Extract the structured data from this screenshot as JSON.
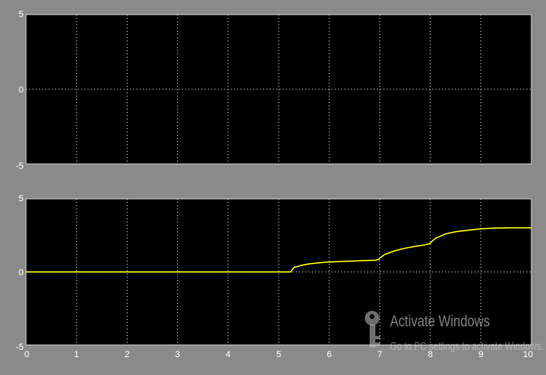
{
  "window": {
    "background": "#8a8a8a",
    "plot_background": "#000000",
    "grid_color": "#ffffff",
    "line_color": "#ffff00"
  },
  "chart_data": [
    {
      "type": "line",
      "title": "",
      "xlabel": "",
      "ylabel": "",
      "xlim": [
        0,
        10
      ],
      "ylim": [
        -5,
        5
      ],
      "y_ticks": [
        "5",
        "0",
        "-5"
      ],
      "x_ticks": [],
      "grid": true,
      "series": []
    },
    {
      "type": "line",
      "title": "",
      "xlabel": "",
      "ylabel": "",
      "xlim": [
        0,
        10
      ],
      "ylim": [
        -5,
        5
      ],
      "y_ticks": [
        "5",
        "0",
        "-5"
      ],
      "x_ticks": [
        "0",
        "1",
        "2",
        "3",
        "4",
        "5",
        "6",
        "7",
        "8",
        "9",
        "10"
      ],
      "grid": true,
      "series": [
        {
          "x": [
            0,
            5.24,
            5.26,
            5.3,
            5.45,
            5.6,
            5.8,
            6.0,
            6.3,
            6.6,
            6.9,
            6.98,
            7.0,
            7.1,
            7.3,
            7.5,
            7.7,
            7.9,
            8.0,
            8.02,
            8.1,
            8.3,
            8.5,
            8.8,
            9.0,
            9.3,
            9.6,
            10
          ],
          "y": [
            0,
            0,
            0.12,
            0.3,
            0.45,
            0.55,
            0.62,
            0.68,
            0.72,
            0.76,
            0.8,
            0.85,
            0.95,
            1.2,
            1.45,
            1.62,
            1.75,
            1.85,
            1.95,
            2.05,
            2.3,
            2.6,
            2.75,
            2.88,
            2.95,
            3.0,
            3.02,
            3.02
          ]
        }
      ]
    }
  ],
  "watermark": {
    "title": "Activate Windows",
    "subtitle": "Go to PC settings to activate Windows.",
    "icon": "key-icon"
  }
}
